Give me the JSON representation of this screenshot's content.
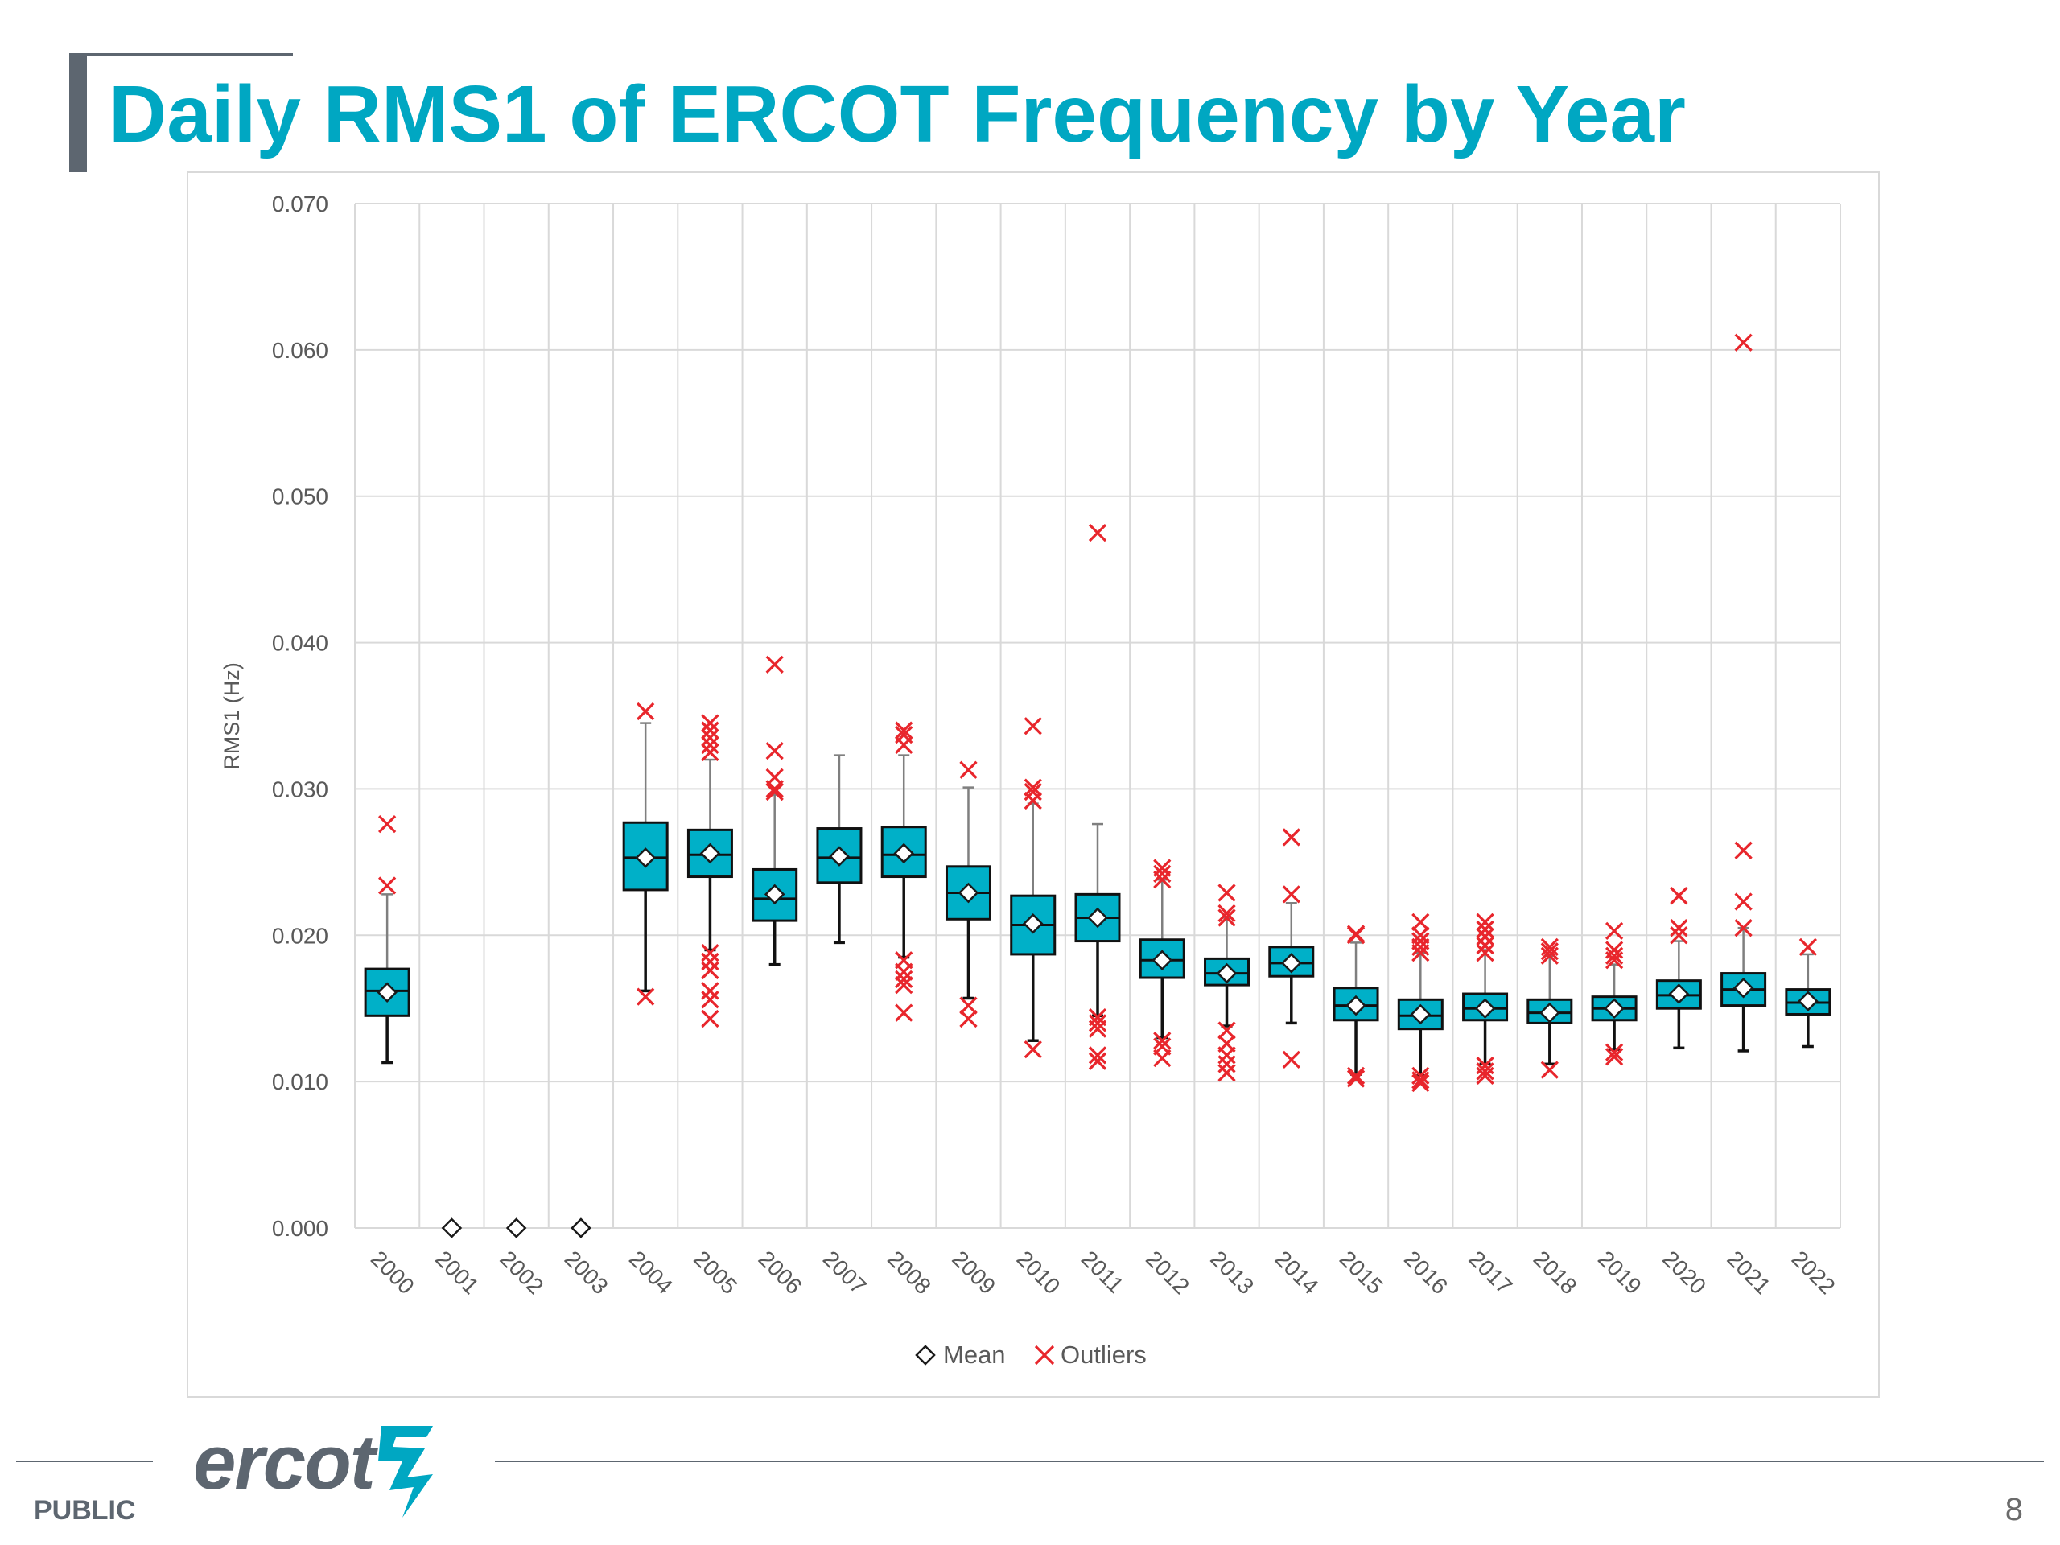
{
  "slide": {
    "title": "Daily RMS1 of ERCOT Frequency by Year",
    "footer_label": "PUBLIC",
    "page_number": "8",
    "logo_text": "ercot",
    "logo_icon": "ercot-lightning-mark-icon"
  },
  "colors": {
    "title": "#00a7c2",
    "box_fill": "#00b0c8",
    "outlier": "#e8262c",
    "mean_marker_stroke": "#1a1a1a",
    "grid": "#d9d9d9",
    "logo": "#5d6670",
    "accent_bar": "#5d6670"
  },
  "chart_data": {
    "type": "box",
    "title": "",
    "xlabel": "",
    "ylabel": "RMS1 (Hz)",
    "ylim": [
      0,
      0.07
    ],
    "yticks": [
      "0.000",
      "0.010",
      "0.020",
      "0.030",
      "0.040",
      "0.050",
      "0.060",
      "0.070"
    ],
    "grid": true,
    "legend_position": "bottom",
    "legend": [
      {
        "key": "mean",
        "label": "Mean"
      },
      {
        "key": "outliers",
        "label": "Outliers"
      }
    ],
    "categories": [
      "2000",
      "2001",
      "2002",
      "2003",
      "2004",
      "2005",
      "2006",
      "2007",
      "2008",
      "2009",
      "2010",
      "2011",
      "2012",
      "2013",
      "2014",
      "2015",
      "2016",
      "2017",
      "2018",
      "2019",
      "2020",
      "2021",
      "2022"
    ],
    "boxes": [
      {
        "year": "2000",
        "min": 0.0113,
        "q1": 0.0145,
        "median": 0.0162,
        "q3": 0.0177,
        "max": 0.0228,
        "mean": 0.0161,
        "outliers": [
          0.0234,
          0.0276
        ]
      },
      {
        "year": "2001",
        "min": null,
        "q1": null,
        "median": null,
        "q3": null,
        "max": null,
        "mean": 0.0,
        "outliers": []
      },
      {
        "year": "2002",
        "min": null,
        "q1": null,
        "median": null,
        "q3": null,
        "max": null,
        "mean": 0.0,
        "outliers": []
      },
      {
        "year": "2003",
        "min": null,
        "q1": null,
        "median": null,
        "q3": null,
        "max": null,
        "mean": 0.0,
        "outliers": []
      },
      {
        "year": "2004",
        "min": 0.0162,
        "q1": 0.0231,
        "median": 0.0253,
        "q3": 0.0277,
        "max": 0.0345,
        "mean": 0.0253,
        "outliers": [
          0.0353,
          0.0158
        ]
      },
      {
        "year": "2005",
        "min": 0.019,
        "q1": 0.024,
        "median": 0.0255,
        "q3": 0.0272,
        "max": 0.032,
        "mean": 0.0256,
        "outliers": [
          0.0345,
          0.034,
          0.0335,
          0.033,
          0.0325,
          0.0188,
          0.0182,
          0.0176,
          0.0162,
          0.0156,
          0.0143
        ]
      },
      {
        "year": "2006",
        "min": 0.018,
        "q1": 0.021,
        "median": 0.0225,
        "q3": 0.0245,
        "max": 0.0296,
        "mean": 0.0228,
        "outliers": [
          0.0385,
          0.0326,
          0.0308,
          0.03,
          0.0298
        ]
      },
      {
        "year": "2007",
        "min": 0.0195,
        "q1": 0.0236,
        "median": 0.0253,
        "q3": 0.0273,
        "max": 0.0323,
        "mean": 0.0254,
        "outliers": []
      },
      {
        "year": "2008",
        "min": 0.0185,
        "q1": 0.024,
        "median": 0.0255,
        "q3": 0.0274,
        "max": 0.0323,
        "mean": 0.0256,
        "outliers": [
          0.034,
          0.0337,
          0.033,
          0.0183,
          0.0175,
          0.017,
          0.0166,
          0.0147
        ]
      },
      {
        "year": "2009",
        "min": 0.0157,
        "q1": 0.0211,
        "median": 0.0229,
        "q3": 0.0247,
        "max": 0.0301,
        "mean": 0.0229,
        "outliers": [
          0.0313,
          0.0152,
          0.0143
        ]
      },
      {
        "year": "2010",
        "min": 0.0128,
        "q1": 0.0187,
        "median": 0.0207,
        "q3": 0.0227,
        "max": 0.029,
        "mean": 0.0208,
        "outliers": [
          0.0343,
          0.0301,
          0.0298,
          0.0292,
          0.0122
        ]
      },
      {
        "year": "2011",
        "min": 0.0145,
        "q1": 0.0196,
        "median": 0.0212,
        "q3": 0.0228,
        "max": 0.0276,
        "mean": 0.0212,
        "outliers": [
          0.0475,
          0.0144,
          0.014,
          0.0136,
          0.0118,
          0.0114
        ]
      },
      {
        "year": "2012",
        "min": 0.013,
        "q1": 0.0171,
        "median": 0.0183,
        "q3": 0.0197,
        "max": 0.0238,
        "mean": 0.0183,
        "outliers": [
          0.0246,
          0.0242,
          0.0238,
          0.0128,
          0.0124,
          0.0116
        ]
      },
      {
        "year": "2013",
        "min": 0.0138,
        "q1": 0.0166,
        "median": 0.0174,
        "q3": 0.0184,
        "max": 0.0212,
        "mean": 0.0174,
        "outliers": [
          0.0229,
          0.0215,
          0.0212,
          0.0135,
          0.0126,
          0.0118,
          0.0112,
          0.0106
        ]
      },
      {
        "year": "2014",
        "min": 0.014,
        "q1": 0.0172,
        "median": 0.0181,
        "q3": 0.0192,
        "max": 0.0222,
        "mean": 0.0181,
        "outliers": [
          0.0267,
          0.0228,
          0.0115
        ]
      },
      {
        "year": "2015",
        "min": 0.0105,
        "q1": 0.0142,
        "median": 0.0152,
        "q3": 0.0164,
        "max": 0.0195,
        "mean": 0.0152,
        "outliers": [
          0.0201,
          0.02,
          0.0104,
          0.0102
        ]
      },
      {
        "year": "2016",
        "min": 0.0104,
        "q1": 0.0136,
        "median": 0.0145,
        "q3": 0.0156,
        "max": 0.0188,
        "mean": 0.0146,
        "outliers": [
          0.0209,
          0.02,
          0.0196,
          0.0192,
          0.0188,
          0.0104,
          0.0101,
          0.0099
        ]
      },
      {
        "year": "2017",
        "min": 0.0112,
        "q1": 0.0142,
        "median": 0.015,
        "q3": 0.016,
        "max": 0.019,
        "mean": 0.015,
        "outliers": [
          0.0209,
          0.0204,
          0.0199,
          0.0193,
          0.0188,
          0.0111,
          0.0107,
          0.0104
        ]
      },
      {
        "year": "2018",
        "min": 0.0112,
        "q1": 0.014,
        "median": 0.0147,
        "q3": 0.0156,
        "max": 0.0186,
        "mean": 0.0147,
        "outliers": [
          0.0192,
          0.0189,
          0.0186,
          0.0108
        ]
      },
      {
        "year": "2019",
        "min": 0.0122,
        "q1": 0.0142,
        "median": 0.015,
        "q3": 0.0158,
        "max": 0.018,
        "mean": 0.015,
        "outliers": [
          0.0203,
          0.019,
          0.0186,
          0.0183,
          0.012,
          0.0117
        ]
      },
      {
        "year": "2020",
        "min": 0.0123,
        "q1": 0.015,
        "median": 0.0159,
        "q3": 0.0169,
        "max": 0.0196,
        "mean": 0.016,
        "outliers": [
          0.0227,
          0.0205,
          0.02
        ]
      },
      {
        "year": "2021",
        "min": 0.0121,
        "q1": 0.0152,
        "median": 0.0163,
        "q3": 0.0174,
        "max": 0.0205,
        "mean": 0.0164,
        "outliers": [
          0.0605,
          0.0258,
          0.0223,
          0.0205
        ]
      },
      {
        "year": "2022",
        "min": 0.0124,
        "q1": 0.0146,
        "median": 0.0154,
        "q3": 0.0163,
        "max": 0.0187,
        "mean": 0.0155,
        "outliers": [
          0.0192
        ]
      }
    ]
  }
}
